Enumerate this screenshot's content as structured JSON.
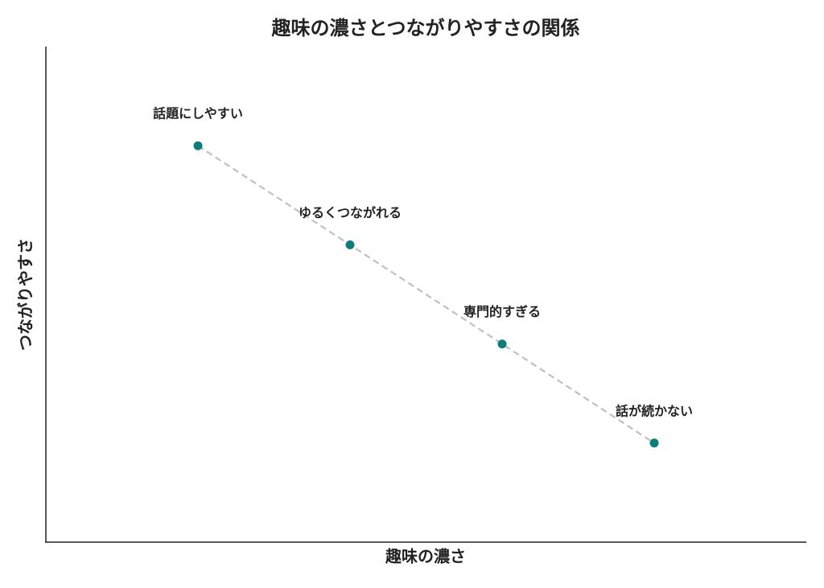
{
  "chart_data": {
    "type": "line",
    "title": "趣味の濃さとつながりやすさの関係",
    "xlabel": "趣味の濃さ",
    "ylabel": "つながりやすさ",
    "x": [
      1,
      2,
      3,
      4
    ],
    "series": [
      {
        "values": [
          4,
          3,
          2,
          1
        ],
        "line_color": "#c0c0c0",
        "color": "#0e7c7b",
        "linestyle": "dashed"
      }
    ],
    "labels": [
      "話題にしやすい",
      "ゆるくつながれる",
      "専門的すぎる",
      "話が続かない"
    ],
    "xlim": [
      0,
      5
    ],
    "ylim": [
      0,
      5
    ],
    "grid": false
  }
}
